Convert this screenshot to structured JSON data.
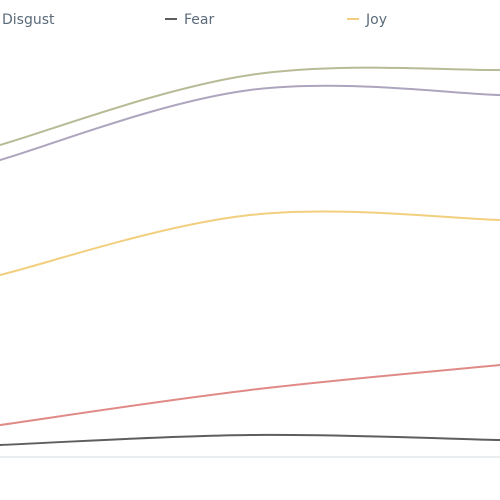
{
  "chart_data": {
    "type": "line",
    "title": "",
    "xlabel": "",
    "ylabel": "",
    "x": [
      0,
      1,
      2
    ],
    "ylim": [
      0,
      100
    ],
    "grid": false,
    "legend": {
      "placement": "top"
    },
    "series": [
      {
        "name": "",
        "color": "#b8bb96",
        "values": [
          71,
          85,
          86
        ]
      },
      {
        "name": "",
        "color": "#ada5be",
        "values": [
          68,
          82,
          81
        ]
      },
      {
        "name": "Joy",
        "color": "#f2cf7f",
        "values": [
          45,
          57,
          56
        ]
      },
      {
        "name": "",
        "color": "#e08a88",
        "values": [
          15,
          22,
          27
        ]
      },
      {
        "name": "Fear",
        "color": "#5e5e5e",
        "values": [
          11,
          13,
          12
        ]
      }
    ],
    "legend_entries": [
      {
        "name": "Disgust",
        "color": "#b8bb96",
        "show_swatch": false
      },
      {
        "name": "Fear",
        "color": "#5e5e5e",
        "show_swatch": true
      },
      {
        "name": "Joy",
        "color": "#f2cf7f",
        "show_swatch": true
      }
    ],
    "axis_color": "#d6dbe0"
  }
}
